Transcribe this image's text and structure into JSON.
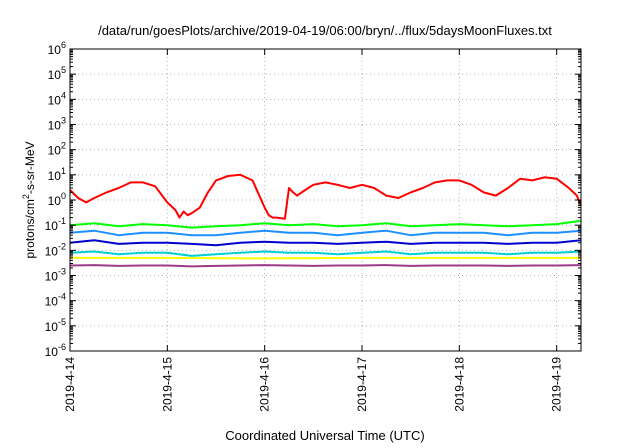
{
  "chart_data": {
    "type": "line",
    "title": "/data/run/goesPlots/archive/2019-04-19/06:00/bryn/../flux/5daysMoonFluxes.txt",
    "xlabel": "Coordinated Universal Time (UTC)",
    "ylabel_parts": [
      "protons/cm",
      "2",
      "-s-sr-MeV"
    ],
    "y_scale": "log",
    "ylim": [
      1e-06,
      1000000.0
    ],
    "y_ticks": [
      {
        "base": "10",
        "exp": "-6",
        "value": 1e-06
      },
      {
        "base": "10",
        "exp": "-5",
        "value": 1e-05
      },
      {
        "base": "10",
        "exp": "-4",
        "value": 0.0001
      },
      {
        "base": "10",
        "exp": "-3",
        "value": 0.001
      },
      {
        "base": "10",
        "exp": "-2",
        "value": 0.01
      },
      {
        "base": "10",
        "exp": "-1",
        "value": 0.1
      },
      {
        "base": "10",
        "exp": "0",
        "value": 1
      },
      {
        "base": "10",
        "exp": "1",
        "value": 10
      },
      {
        "base": "10",
        "exp": "2",
        "value": 100
      },
      {
        "base": "10",
        "exp": "3",
        "value": 1000
      },
      {
        "base": "10",
        "exp": "4",
        "value": 10000
      },
      {
        "base": "10",
        "exp": "5",
        "value": 100000
      },
      {
        "base": "10",
        "exp": "6",
        "value": 1000000
      }
    ],
    "xlim": [
      "2019-04-14T00:00",
      "2019-04-19T06:00"
    ],
    "x_ticks": [
      "2019-4-14",
      "2019-4-15",
      "2019-4-16",
      "2019-4-17",
      "2019-4-18",
      "2019-4-19"
    ],
    "grid": true,
    "legend": "none",
    "series": [
      {
        "color": "#ff0000",
        "x": [
          "2019-04-14T00:00",
          "2019-04-14T02:00",
          "2019-04-14T04:00",
          "2019-04-14T06:00",
          "2019-04-14T09:00",
          "2019-04-14T12:00",
          "2019-04-14T15:00",
          "2019-04-14T18:00",
          "2019-04-14T21:00",
          "2019-04-15T00:00",
          "2019-04-15T02:00",
          "2019-04-15T03:00",
          "2019-04-15T04:00",
          "2019-04-15T05:00",
          "2019-04-15T06:00",
          "2019-04-15T08:00",
          "2019-04-15T10:00",
          "2019-04-15T12:00",
          "2019-04-15T15:00",
          "2019-04-15T18:00",
          "2019-04-15T21:00",
          "2019-04-16T00:00",
          "2019-04-16T01:00",
          "2019-04-16T02:00",
          "2019-04-16T03:00",
          "2019-04-16T05:00",
          "2019-04-16T06:00",
          "2019-04-16T07:00",
          "2019-04-16T08:00",
          "2019-04-16T10:00",
          "2019-04-16T12:00",
          "2019-04-16T15:00",
          "2019-04-16T18:00",
          "2019-04-16T21:00",
          "2019-04-17T00:00",
          "2019-04-17T03:00",
          "2019-04-17T06:00",
          "2019-04-17T09:00",
          "2019-04-17T12:00",
          "2019-04-17T15:00",
          "2019-04-17T18:00",
          "2019-04-17T21:00",
          "2019-04-18T00:00",
          "2019-04-18T03:00",
          "2019-04-18T06:00",
          "2019-04-18T09:00",
          "2019-04-18T12:00",
          "2019-04-18T15:00",
          "2019-04-18T18:00",
          "2019-04-18T21:00",
          "2019-04-19T00:00",
          "2019-04-19T03:00",
          "2019-04-19T05:00",
          "2019-04-19T06:00"
        ],
        "y": [
          2.5,
          1.2,
          0.8,
          1.2,
          2,
          3,
          5,
          5,
          3.5,
          0.8,
          0.4,
          0.2,
          0.35,
          0.25,
          0.3,
          0.5,
          2,
          6,
          9,
          10,
          6,
          0.5,
          0.25,
          0.2,
          0.2,
          0.18,
          3,
          2,
          1.5,
          2.5,
          4,
          5,
          4,
          3,
          4,
          3,
          1.5,
          1.2,
          2,
          3,
          5,
          6,
          6,
          4,
          2,
          1.5,
          3,
          7,
          6,
          8,
          7,
          3,
          1.5,
          0.6
        ]
      },
      {
        "color": "#00ff00",
        "x": [
          "2019-04-14T00:00",
          "2019-04-14T06:00",
          "2019-04-14T12:00",
          "2019-04-14T18:00",
          "2019-04-15T00:00",
          "2019-04-15T06:00",
          "2019-04-15T12:00",
          "2019-04-15T18:00",
          "2019-04-16T00:00",
          "2019-04-16T06:00",
          "2019-04-16T12:00",
          "2019-04-16T18:00",
          "2019-04-17T00:00",
          "2019-04-17T06:00",
          "2019-04-17T12:00",
          "2019-04-17T18:00",
          "2019-04-18T00:00",
          "2019-04-18T06:00",
          "2019-04-18T12:00",
          "2019-04-18T18:00",
          "2019-04-19T00:00",
          "2019-04-19T06:00"
        ],
        "y": [
          0.1,
          0.12,
          0.09,
          0.11,
          0.1,
          0.08,
          0.09,
          0.1,
          0.12,
          0.1,
          0.11,
          0.09,
          0.1,
          0.12,
          0.09,
          0.1,
          0.11,
          0.1,
          0.09,
          0.1,
          0.11,
          0.15
        ]
      },
      {
        "color": "#1e90ff",
        "x": [
          "2019-04-14T00:00",
          "2019-04-14T06:00",
          "2019-04-14T12:00",
          "2019-04-14T18:00",
          "2019-04-15T00:00",
          "2019-04-15T06:00",
          "2019-04-15T12:00",
          "2019-04-15T18:00",
          "2019-04-16T00:00",
          "2019-04-16T06:00",
          "2019-04-16T12:00",
          "2019-04-16T18:00",
          "2019-04-17T00:00",
          "2019-04-17T06:00",
          "2019-04-17T12:00",
          "2019-04-17T18:00",
          "2019-04-18T00:00",
          "2019-04-18T06:00",
          "2019-04-18T12:00",
          "2019-04-18T18:00",
          "2019-04-19T00:00",
          "2019-04-19T06:00"
        ],
        "y": [
          0.05,
          0.06,
          0.04,
          0.05,
          0.05,
          0.04,
          0.04,
          0.05,
          0.06,
          0.05,
          0.05,
          0.04,
          0.05,
          0.06,
          0.04,
          0.05,
          0.05,
          0.05,
          0.04,
          0.05,
          0.05,
          0.06
        ]
      },
      {
        "color": "#0000cd",
        "x": [
          "2019-04-14T00:00",
          "2019-04-14T06:00",
          "2019-04-14T12:00",
          "2019-04-14T18:00",
          "2019-04-15T00:00",
          "2019-04-15T06:00",
          "2019-04-15T12:00",
          "2019-04-15T18:00",
          "2019-04-16T00:00",
          "2019-04-16T06:00",
          "2019-04-16T12:00",
          "2019-04-16T18:00",
          "2019-04-17T00:00",
          "2019-04-17T06:00",
          "2019-04-17T12:00",
          "2019-04-17T18:00",
          "2019-04-18T00:00",
          "2019-04-18T06:00",
          "2019-04-18T12:00",
          "2019-04-18T18:00",
          "2019-04-19T00:00",
          "2019-04-19T06:00"
        ],
        "y": [
          0.02,
          0.025,
          0.018,
          0.02,
          0.02,
          0.018,
          0.016,
          0.02,
          0.022,
          0.02,
          0.02,
          0.018,
          0.02,
          0.022,
          0.018,
          0.02,
          0.02,
          0.02,
          0.018,
          0.02,
          0.02,
          0.025
        ]
      },
      {
        "color": "#00ced1",
        "x": [
          "2019-04-14T00:00",
          "2019-04-14T06:00",
          "2019-04-14T12:00",
          "2019-04-14T18:00",
          "2019-04-15T00:00",
          "2019-04-15T06:00",
          "2019-04-15T12:00",
          "2019-04-15T18:00",
          "2019-04-16T00:00",
          "2019-04-16T06:00",
          "2019-04-16T12:00",
          "2019-04-16T18:00",
          "2019-04-17T00:00",
          "2019-04-17T06:00",
          "2019-04-17T12:00",
          "2019-04-17T18:00",
          "2019-04-18T00:00",
          "2019-04-18T06:00",
          "2019-04-18T12:00",
          "2019-04-18T18:00",
          "2019-04-19T00:00",
          "2019-04-19T06:00"
        ],
        "y": [
          0.008,
          0.009,
          0.007,
          0.008,
          0.008,
          0.006,
          0.007,
          0.008,
          0.009,
          0.008,
          0.008,
          0.007,
          0.008,
          0.009,
          0.007,
          0.008,
          0.008,
          0.008,
          0.007,
          0.008,
          0.008,
          0.009
        ]
      },
      {
        "color": "#ffff00",
        "x": [
          "2019-04-14T00:00",
          "2019-04-15T00:00",
          "2019-04-16T00:00",
          "2019-04-17T00:00",
          "2019-04-18T00:00",
          "2019-04-19T00:00",
          "2019-04-19T06:00"
        ],
        "y": [
          0.005,
          0.005,
          0.0048,
          0.005,
          0.005,
          0.005,
          0.005
        ]
      },
      {
        "color": "#9b3a8a",
        "x": [
          "2019-04-14T00:00",
          "2019-04-14T06:00",
          "2019-04-14T12:00",
          "2019-04-14T18:00",
          "2019-04-15T00:00",
          "2019-04-15T06:00",
          "2019-04-15T12:00",
          "2019-04-15T18:00",
          "2019-04-16T00:00",
          "2019-04-16T06:00",
          "2019-04-16T12:00",
          "2019-04-16T18:00",
          "2019-04-17T00:00",
          "2019-04-17T06:00",
          "2019-04-17T12:00",
          "2019-04-17T18:00",
          "2019-04-18T00:00",
          "2019-04-18T06:00",
          "2019-04-18T12:00",
          "2019-04-18T18:00",
          "2019-04-19T00:00",
          "2019-04-19T06:00"
        ],
        "y": [
          0.0025,
          0.0026,
          0.0024,
          0.0025,
          0.0025,
          0.0023,
          0.0024,
          0.0025,
          0.0026,
          0.0025,
          0.0024,
          0.0025,
          0.0025,
          0.0026,
          0.0024,
          0.0025,
          0.0025,
          0.0025,
          0.0024,
          0.0025,
          0.0025,
          0.0026
        ]
      }
    ]
  }
}
